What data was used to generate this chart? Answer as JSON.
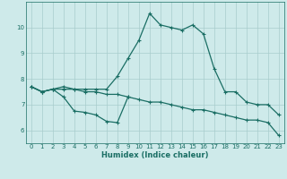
{
  "xlabel": "Humidex (Indice chaleur)",
  "background_color": "#ceeaea",
  "grid_color": "#a8cccc",
  "line_color": "#1a6e64",
  "x": [
    0,
    1,
    2,
    3,
    4,
    5,
    6,
    7,
    8,
    9,
    10,
    11,
    12,
    13,
    14,
    15,
    16,
    17,
    18,
    19,
    20,
    21,
    22,
    23
  ],
  "line2": [
    7.7,
    7.5,
    7.6,
    7.7,
    7.6,
    7.6,
    7.6,
    7.6,
    8.1,
    8.8,
    9.5,
    10.55,
    10.1,
    10.0,
    9.9,
    10.1,
    9.75,
    8.4,
    7.5,
    7.5,
    7.1,
    7.0,
    7.0,
    6.6
  ],
  "line3": [
    7.7,
    7.5,
    7.6,
    7.6,
    7.6,
    7.5,
    7.5,
    7.4,
    7.4,
    7.3,
    7.2,
    7.1,
    7.1,
    7.0,
    6.9,
    6.8,
    6.8,
    6.7,
    6.6,
    6.5,
    6.4,
    6.4,
    6.3,
    5.8
  ],
  "line1_x": [
    0,
    1,
    2,
    3,
    4,
    5,
    6,
    7,
    8,
    9
  ],
  "line1_y": [
    7.7,
    7.5,
    7.6,
    7.3,
    6.75,
    6.7,
    6.6,
    6.35,
    6.3,
    7.3
  ],
  "ylim": [
    5.5,
    11.0
  ],
  "xlim": [
    -0.5,
    23.5
  ],
  "yticks": [
    6,
    7,
    8,
    9,
    10
  ],
  "xticks": [
    0,
    1,
    2,
    3,
    4,
    5,
    6,
    7,
    8,
    9,
    10,
    11,
    12,
    13,
    14,
    15,
    16,
    17,
    18,
    19,
    20,
    21,
    22,
    23
  ]
}
